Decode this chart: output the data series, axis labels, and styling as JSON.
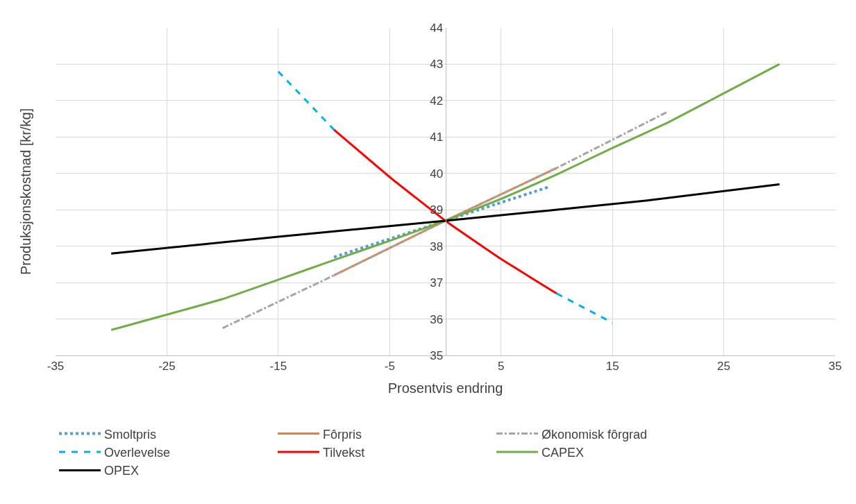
{
  "chart_data": {
    "type": "line",
    "xlabel": "Prosentvis endring",
    "ylabel": "Produksjonskostnad [kr/kg]",
    "xlim": [
      -35,
      35
    ],
    "xticks": [
      -35,
      -25,
      -15,
      -5,
      5,
      15,
      25,
      35
    ],
    "ylim": [
      35,
      44
    ],
    "yticks": [
      35,
      36,
      37,
      38,
      39,
      40,
      41,
      42,
      43,
      44
    ],
    "grid": true,
    "legend": "bottom",
    "marker": "none",
    "series": [
      {
        "name": "Smoltpris",
        "color": "#5b9bd5",
        "line_style": "dotted",
        "x": [
          -10,
          0,
          9.3
        ],
        "values": [
          37.7,
          38.7,
          39.63
        ]
      },
      {
        "name": "Fôrpris",
        "color": "#ed7d31",
        "line_style": "solid",
        "x": [
          -10,
          0,
          10
        ],
        "values": [
          37.2,
          38.7,
          40.15
        ]
      },
      {
        "name": "Økonomisk fôrgrad",
        "color": "#a5a5a5",
        "line_style": "dashdot",
        "x": [
          -20,
          -10,
          0,
          10,
          20
        ],
        "values": [
          35.75,
          37.2,
          38.7,
          40.15,
          41.7
        ]
      },
      {
        "name": "Overlevelse",
        "color": "#00b0f0",
        "line_style": "dashed",
        "x": [
          -15,
          -10,
          -5,
          0,
          5,
          10,
          15
        ],
        "values": [
          42.8,
          41.2,
          null,
          null,
          null,
          36.7,
          35.9
        ]
      },
      {
        "name": "Tilvekst",
        "color": "#ff0000",
        "line_style": "solid",
        "x": [
          -10,
          -5,
          0,
          5,
          10
        ],
        "values": [
          41.2,
          39.9,
          38.7,
          37.65,
          36.7
        ]
      },
      {
        "name": "CAPEX",
        "color": "#70ad47",
        "line_style": "solid",
        "x": [
          -30,
          -20,
          -15,
          -10,
          -5,
          0,
          5,
          10,
          15,
          20,
          25,
          30
        ],
        "values": [
          35.7,
          36.55,
          37.08,
          37.62,
          38.15,
          38.7,
          39.3,
          39.97,
          40.7,
          41.4,
          42.2,
          43.0
        ]
      },
      {
        "name": "OPEX",
        "color": "#000000",
        "line_style": "solid",
        "x": [
          -30,
          -15,
          0,
          18,
          30
        ],
        "values": [
          37.8,
          38.26,
          38.7,
          39.25,
          39.7
        ]
      }
    ]
  }
}
